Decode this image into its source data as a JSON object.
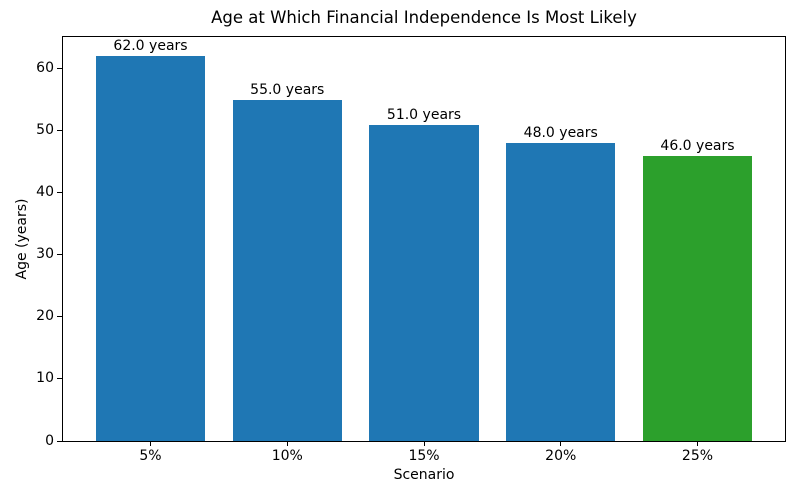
{
  "chart_data": {
    "type": "bar",
    "title": "Age at Which Financial Independence Is Most Likely",
    "xlabel": "Scenario",
    "ylabel": "Age (years)",
    "categories": [
      "5%",
      "10%",
      "15%",
      "20%",
      "25%"
    ],
    "values": [
      62.0,
      55.0,
      51.0,
      48.0,
      46.0
    ],
    "bar_labels": [
      "62.0 years",
      "55.0 years",
      "51.0 years",
      "48.0 years",
      "46.0 years"
    ],
    "bar_colors": [
      "#1f77b4",
      "#1f77b4",
      "#1f77b4",
      "#1f77b4",
      "#2ca02c"
    ],
    "ylim": [
      0,
      65.1
    ],
    "yticks": [
      0,
      10,
      20,
      30,
      40,
      50,
      60
    ],
    "bar_width_fraction": 0.8,
    "grid": false,
    "legend": "none",
    "background_color": "#ffffff",
    "spine_color": "#000000",
    "text_color": "#000000"
  }
}
